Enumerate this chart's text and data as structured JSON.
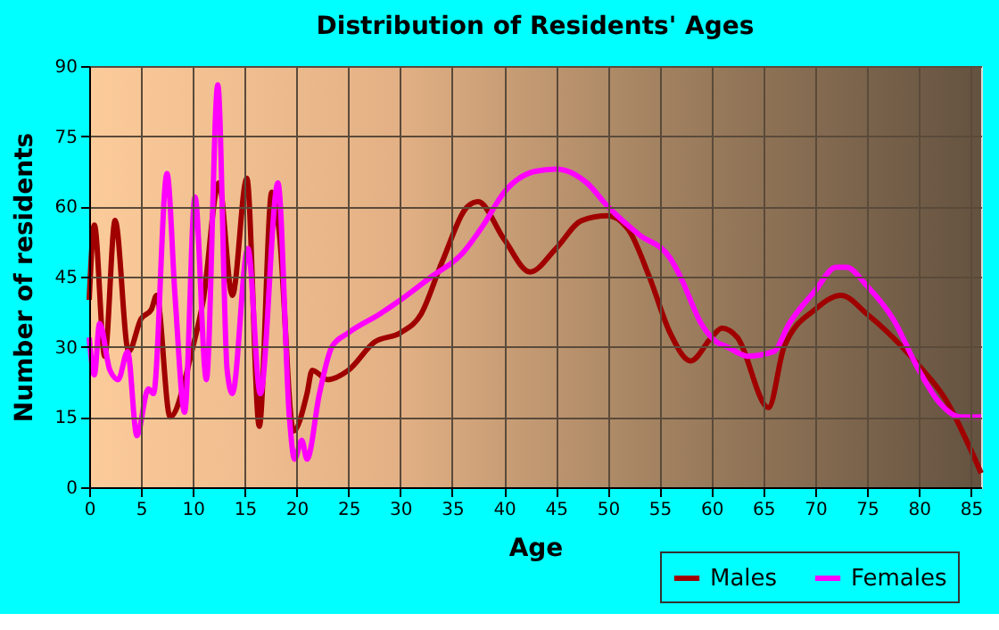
{
  "chart_data": {
    "type": "line",
    "title": "Distribution of Residents' Ages",
    "xlabel": "Age",
    "ylabel": "Number of residents",
    "xlim": [
      0,
      86
    ],
    "xticks": [
      0,
      5,
      10,
      15,
      20,
      25,
      30,
      35,
      40,
      45,
      50,
      55,
      60,
      65,
      70,
      75,
      80,
      85
    ],
    "ylim": [
      0,
      90
    ],
    "yticks": [
      0,
      15,
      30,
      45,
      60,
      75,
      90
    ],
    "grid": true,
    "legend": "bottom right",
    "line_style": "solid",
    "marker": "none",
    "series": [
      {
        "name": "Males",
        "color": "#a00000",
        "x": [
          0,
          0.5,
          1.5,
          2.5,
          3.8,
          5,
          6,
          6.5,
          7.8,
          10,
          11,
          12.5,
          13.8,
          15.2,
          16.4,
          17.6,
          18.3,
          19.7,
          21,
          21.5,
          23,
          25,
          27.5,
          30,
          32,
          34,
          36.5,
          37.5,
          40,
          42.5,
          45,
          47.5,
          50,
          52,
          54,
          56,
          58,
          60,
          61,
          62.5,
          65.5,
          67,
          70,
          72.5,
          75,
          80,
          82.5,
          86
        ],
        "values": [
          40,
          56,
          28,
          57,
          29,
          36,
          38,
          41,
          15,
          30,
          40,
          65,
          41,
          66,
          13,
          63,
          55,
          12,
          20,
          25,
          23,
          25,
          31,
          33,
          37,
          48,
          60,
          61,
          53,
          46,
          51,
          57,
          58,
          55,
          45,
          33,
          27,
          32,
          34,
          32,
          17,
          30,
          38,
          41,
          37,
          26,
          19,
          3
        ]
      },
      {
        "name": "Females",
        "color": "#ff00ff",
        "x": [
          0,
          0.5,
          1,
          2,
          2.8,
          3.7,
          4.6,
          5.7,
          6.2,
          7.5,
          8.3,
          9.2,
          10.2,
          11.3,
          12.4,
          13.3,
          13.8,
          15.3,
          16.5,
          18.2,
          19.3,
          19.8,
          20.5,
          21,
          22.2,
          23.4,
          25,
          28,
          30,
          33,
          36,
          38,
          40,
          43,
          45,
          48,
          50,
          53,
          56,
          57,
          59,
          60.5,
          61.5,
          63.5,
          66,
          67.5,
          70,
          72,
          73,
          75,
          77.5,
          80,
          82,
          84,
          86
        ],
        "values": [
          32,
          24,
          35,
          25,
          23,
          29,
          11,
          21,
          20,
          67,
          40,
          16,
          62,
          23,
          86,
          25,
          20,
          51,
          20,
          65,
          15,
          6,
          10,
          6,
          20,
          30,
          33,
          37,
          40,
          45,
          50,
          56,
          63,
          67.5,
          68,
          65,
          60,
          54,
          49,
          45,
          35,
          31,
          30,
          28,
          29,
          35,
          42,
          47,
          47,
          43,
          36,
          25,
          18,
          15,
          15
        ]
      }
    ]
  }
}
